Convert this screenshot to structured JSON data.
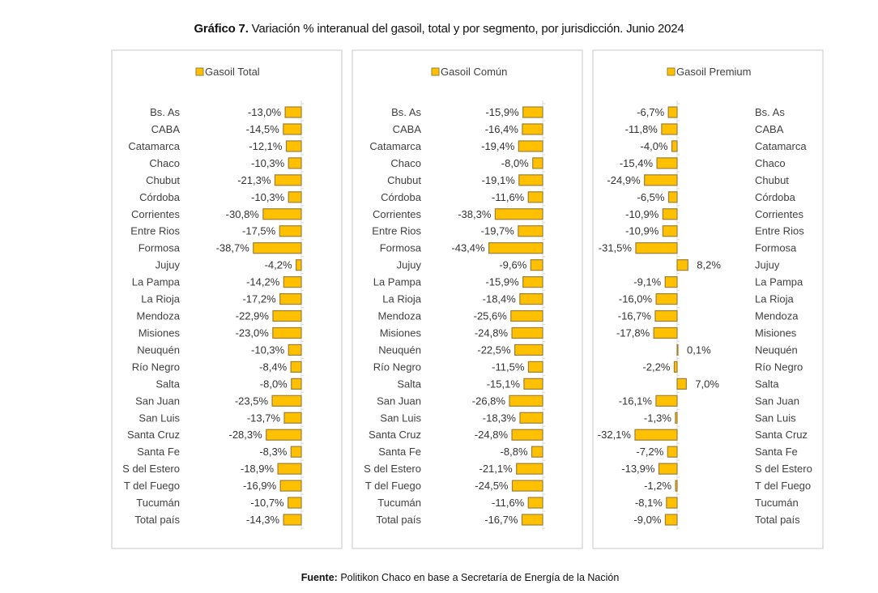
{
  "title": {
    "bold": "Gráfico 7.",
    "rest": " Variación % interanual del gasoil, total y por segmento, por jurisdicción. Junio 2024"
  },
  "source": {
    "bold": "Fuente:",
    "rest": " Politikon Chaco en base a Secretaría de Energía de la Nación"
  },
  "colors": {
    "bar_fill": "#FFC000",
    "bar_border": "#9C7F3A"
  },
  "chart_data": [
    {
      "type": "bar",
      "orientation": "horizontal",
      "title": "",
      "legend": "Gasoil Total",
      "legend_position": "top",
      "xlabel": "",
      "ylabel": "",
      "categories": [
        "Bs. As",
        "CABA",
        "Catamarca",
        "Chaco",
        "Chubut",
        "Córdoba",
        "Corrientes",
        "Entre Rios",
        "Formosa",
        "Jujuy",
        "La Pampa",
        "La Rioja",
        "Mendoza",
        "Misiones",
        "Neuquén",
        "Río Negro",
        "Salta",
        "San Juan",
        "San Luis",
        "Santa Cruz",
        "Santa Fe",
        "S del Estero",
        "T del Fuego",
        "Tucumán",
        "Total país"
      ],
      "values": [
        -13.0,
        -14.5,
        -12.1,
        -10.3,
        -21.3,
        -10.3,
        -30.8,
        -17.5,
        -38.7,
        -4.2,
        -14.2,
        -17.2,
        -22.9,
        -23.0,
        -10.3,
        -8.4,
        -8.0,
        -23.5,
        -13.7,
        -28.3,
        -8.3,
        -18.9,
        -16.9,
        -10.7,
        -14.3
      ],
      "labels": [
        "-13,0%",
        "-14,5%",
        "-12,1%",
        "-10,3%",
        "-21,3%",
        "-10,3%",
        "-30,8%",
        "-17,5%",
        "-38,7%",
        "-4,2%",
        "-14,2%",
        "-17,2%",
        "-22,9%",
        "-23,0%",
        "-10,3%",
        "-8,4%",
        "-8,0%",
        "-23,5%",
        "-13,7%",
        "-28,3%",
        "-8,3%",
        "-18,9%",
        "-16,9%",
        "-10,7%",
        "-14,3%"
      ],
      "category_side": "left",
      "grid": false
    },
    {
      "type": "bar",
      "orientation": "horizontal",
      "title": "",
      "legend": "Gasoil Común",
      "legend_position": "top",
      "xlabel": "",
      "ylabel": "",
      "categories": [
        "Bs. As",
        "CABA",
        "Catamarca",
        "Chaco",
        "Chubut",
        "Córdoba",
        "Corrientes",
        "Entre Rios",
        "Formosa",
        "Jujuy",
        "La Pampa",
        "La Rioja",
        "Mendoza",
        "Misiones",
        "Neuquén",
        "Río Negro",
        "Salta",
        "San Juan",
        "San Luis",
        "Santa Cruz",
        "Santa Fe",
        "S del Estero",
        "T del Fuego",
        "Tucumán",
        "Total país"
      ],
      "values": [
        -15.9,
        -16.4,
        -19.4,
        -8.0,
        -19.1,
        -11.6,
        -38.3,
        -19.7,
        -43.4,
        -9.6,
        -15.9,
        -18.4,
        -25.6,
        -24.8,
        -22.5,
        -11.5,
        -15.1,
        -26.8,
        -18.3,
        -24.8,
        -8.8,
        -21.1,
        -24.5,
        -11.6,
        -16.7
      ],
      "labels": [
        "-15,9%",
        "-16,4%",
        "-19,4%",
        "-8,0%",
        "-19,1%",
        "-11,6%",
        "-38,3%",
        "-19,7%",
        "-43,4%",
        "-9,6%",
        "-15,9%",
        "-18,4%",
        "-25,6%",
        "-24,8%",
        "-22,5%",
        "-11,5%",
        "-15,1%",
        "-26,8%",
        "-18,3%",
        "-24,8%",
        "-8,8%",
        "-21,1%",
        "-24,5%",
        "-11,6%",
        "-16,7%"
      ],
      "category_side": "left",
      "grid": false
    },
    {
      "type": "bar",
      "orientation": "horizontal",
      "title": "",
      "legend": "Gasoil Premium",
      "legend_position": "top",
      "xlabel": "",
      "ylabel": "",
      "categories": [
        "Bs. As",
        "CABA",
        "Catamarca",
        "Chaco",
        "Chubut",
        "Córdoba",
        "Corrientes",
        "Entre Rios",
        "Formosa",
        "Jujuy",
        "La Pampa",
        "La Rioja",
        "Mendoza",
        "Misiones",
        "Neuquén",
        "Río Negro",
        "Salta",
        "San Juan",
        "San Luis",
        "Santa Cruz",
        "Santa Fe",
        "S del Estero",
        "T del Fuego",
        "Tucumán",
        "Total país"
      ],
      "values": [
        -6.7,
        -11.8,
        -4.0,
        -15.4,
        -24.9,
        -6.5,
        -10.9,
        -10.9,
        -31.5,
        8.2,
        -9.1,
        -16.0,
        -16.7,
        -17.8,
        0.1,
        -2.2,
        7.0,
        -16.1,
        -1.3,
        -32.1,
        -7.2,
        -13.9,
        -1.2,
        -8.1,
        -9.0
      ],
      "labels": [
        "-6,7%",
        "-11,8%",
        "-4,0%",
        "-15,4%",
        "-24,9%",
        "-6,5%",
        "-10,9%",
        "-10,9%",
        "-31,5%",
        "8,2%",
        "-9,1%",
        "-16,0%",
        "-16,7%",
        "-17,8%",
        "0,1%",
        "-2,2%",
        "7,0%",
        "-16,1%",
        "-1,3%",
        "-32,1%",
        "-7,2%",
        "-13,9%",
        "-1,2%",
        "-8,1%",
        "-9,0%"
      ],
      "category_side": "right",
      "grid": false
    }
  ]
}
